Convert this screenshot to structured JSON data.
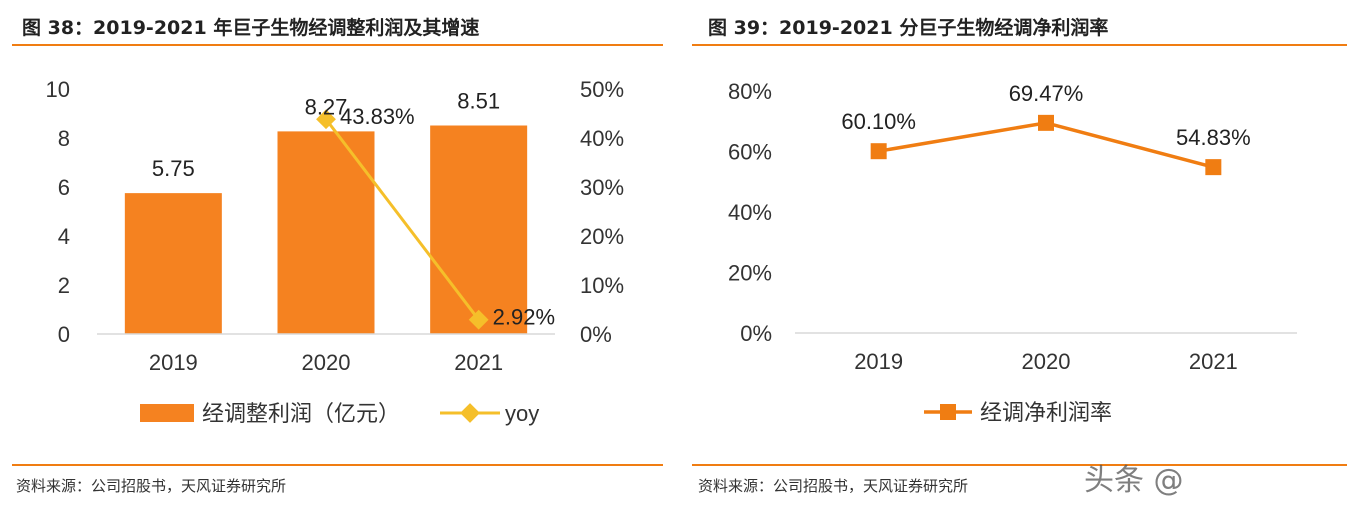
{
  "left": {
    "title": "图 38：2019-2021 年巨子生物经调整利润及其增速",
    "source": "资料来源：公司招股书，天风证券研究所"
  },
  "right": {
    "title": "图 39：2019-2021 分巨子生物经调净利润率",
    "source": "资料来源：公司招股书，天风证券研究所"
  },
  "watermark": "头条 @",
  "colors": {
    "bar": "#f58220",
    "yoy": "#f5bf2a",
    "line": "#f07d12",
    "axis": "#d9d9d9",
    "accent_rule": "#f07d12"
  },
  "chart_data": [
    {
      "type": "bar",
      "categories": [
        "2019",
        "2020",
        "2021"
      ],
      "series": [
        {
          "name": "经调整利润（亿元）",
          "type": "bar",
          "axis": "left",
          "values": [
            5.75,
            8.27,
            8.51
          ],
          "labels": [
            "5.75",
            "8.27",
            "8.51"
          ]
        },
        {
          "name": "yoy",
          "type": "line",
          "axis": "right",
          "x": [
            "2020",
            "2021"
          ],
          "values": [
            43.83,
            2.92
          ],
          "labels": [
            "43.83%",
            "2.92%"
          ]
        }
      ],
      "ylim_left": [
        0,
        10
      ],
      "yticks_left": [
        "0",
        "2",
        "4",
        "6",
        "8",
        "10"
      ],
      "ylim_right": [
        0,
        50
      ],
      "yticks_right": [
        "0%",
        "10%",
        "20%",
        "30%",
        "40%",
        "50%"
      ],
      "grid": false,
      "legend": "bottom"
    },
    {
      "type": "line",
      "categories": [
        "2019",
        "2020",
        "2021"
      ],
      "series": [
        {
          "name": "经调净利润率",
          "values": [
            60.1,
            69.47,
            54.83
          ],
          "labels": [
            "60.10%",
            "69.47%",
            "54.83%"
          ]
        }
      ],
      "ylim": [
        0,
        80
      ],
      "yticks": [
        "0%",
        "20%",
        "40%",
        "60%",
        "80%"
      ],
      "grid": false,
      "legend": "bottom"
    }
  ]
}
